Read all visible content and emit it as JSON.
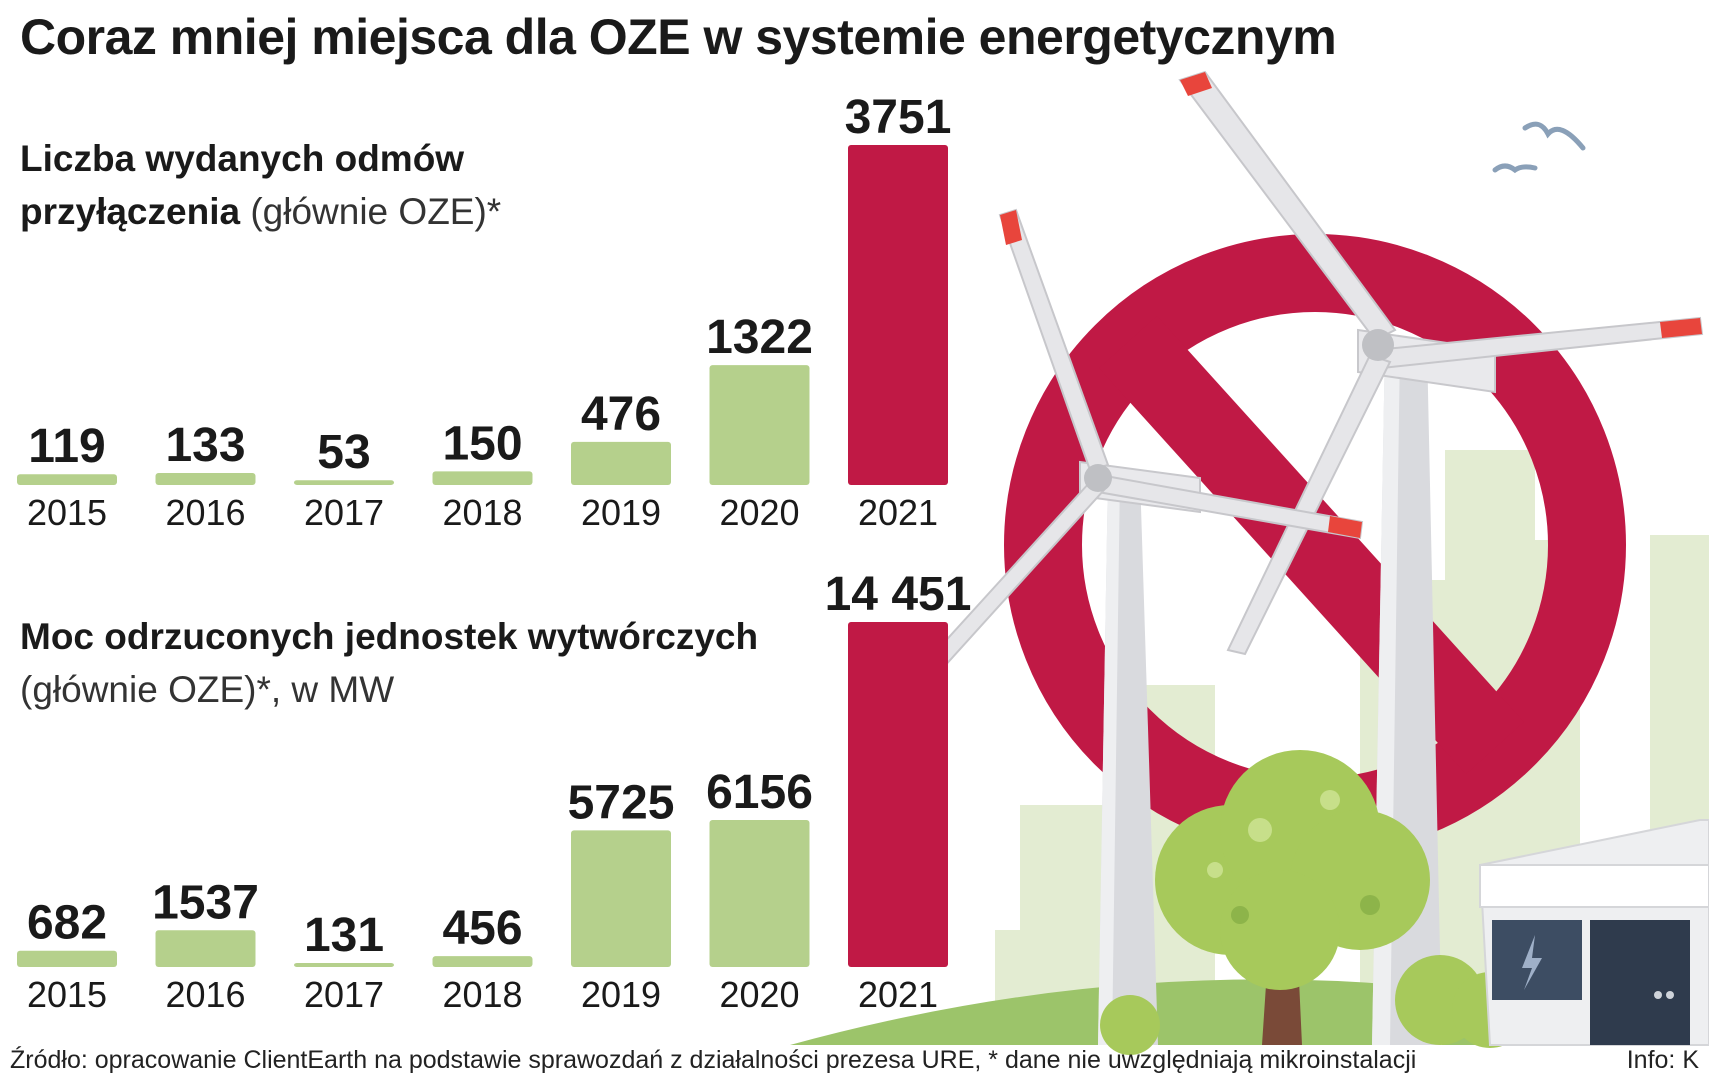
{
  "title": "Coraz mniej miejsca dla OZE w systemie energetycznym",
  "chart_data": [
    {
      "type": "bar",
      "title_bold_line1": "Liczba wydanych odmów",
      "title_bold_line2": "przyłączenia",
      "title_light": " (głównie OZE)*",
      "categories": [
        "2015",
        "2016",
        "2017",
        "2018",
        "2019",
        "2020",
        "2021"
      ],
      "values": [
        119,
        133,
        53,
        150,
        476,
        1322,
        3751
      ],
      "value_labels": [
        "119",
        "133",
        "53",
        "150",
        "476",
        "1322",
        "3751"
      ],
      "ylim": [
        0,
        3751
      ],
      "colors": {
        "normal": "#b5d08c",
        "highlight": "#c01945"
      },
      "highlight_index": 6
    },
    {
      "type": "bar",
      "title_bold_line1": "Moc odrzuconych jednostek wytwórczych",
      "title_light_line2": "(głównie OZE)*, w MW",
      "categories": [
        "2015",
        "2016",
        "2017",
        "2018",
        "2019",
        "2020",
        "2021"
      ],
      "values": [
        682,
        1537,
        131,
        456,
        5725,
        6156,
        14451
      ],
      "value_labels": [
        "682",
        "1537",
        "131",
        "456",
        "5725",
        "6156",
        "14 451"
      ],
      "ylim": [
        0,
        14451
      ],
      "colors": {
        "normal": "#b5d08c",
        "highlight": "#c01945"
      },
      "highlight_index": 6
    }
  ],
  "footer": {
    "source": "Źródło: opracowanie ClientEarth na podstawie sprawozdań z działalności prezesa URE, * dane nie uwzględniają mikroinstalacji",
    "credit": "Info: K"
  },
  "illustration_icons": [
    "wind-turbine-icon",
    "prohibition-sign-icon",
    "tree-icon",
    "building-icon",
    "bird-icon",
    "lightning-icon"
  ]
}
